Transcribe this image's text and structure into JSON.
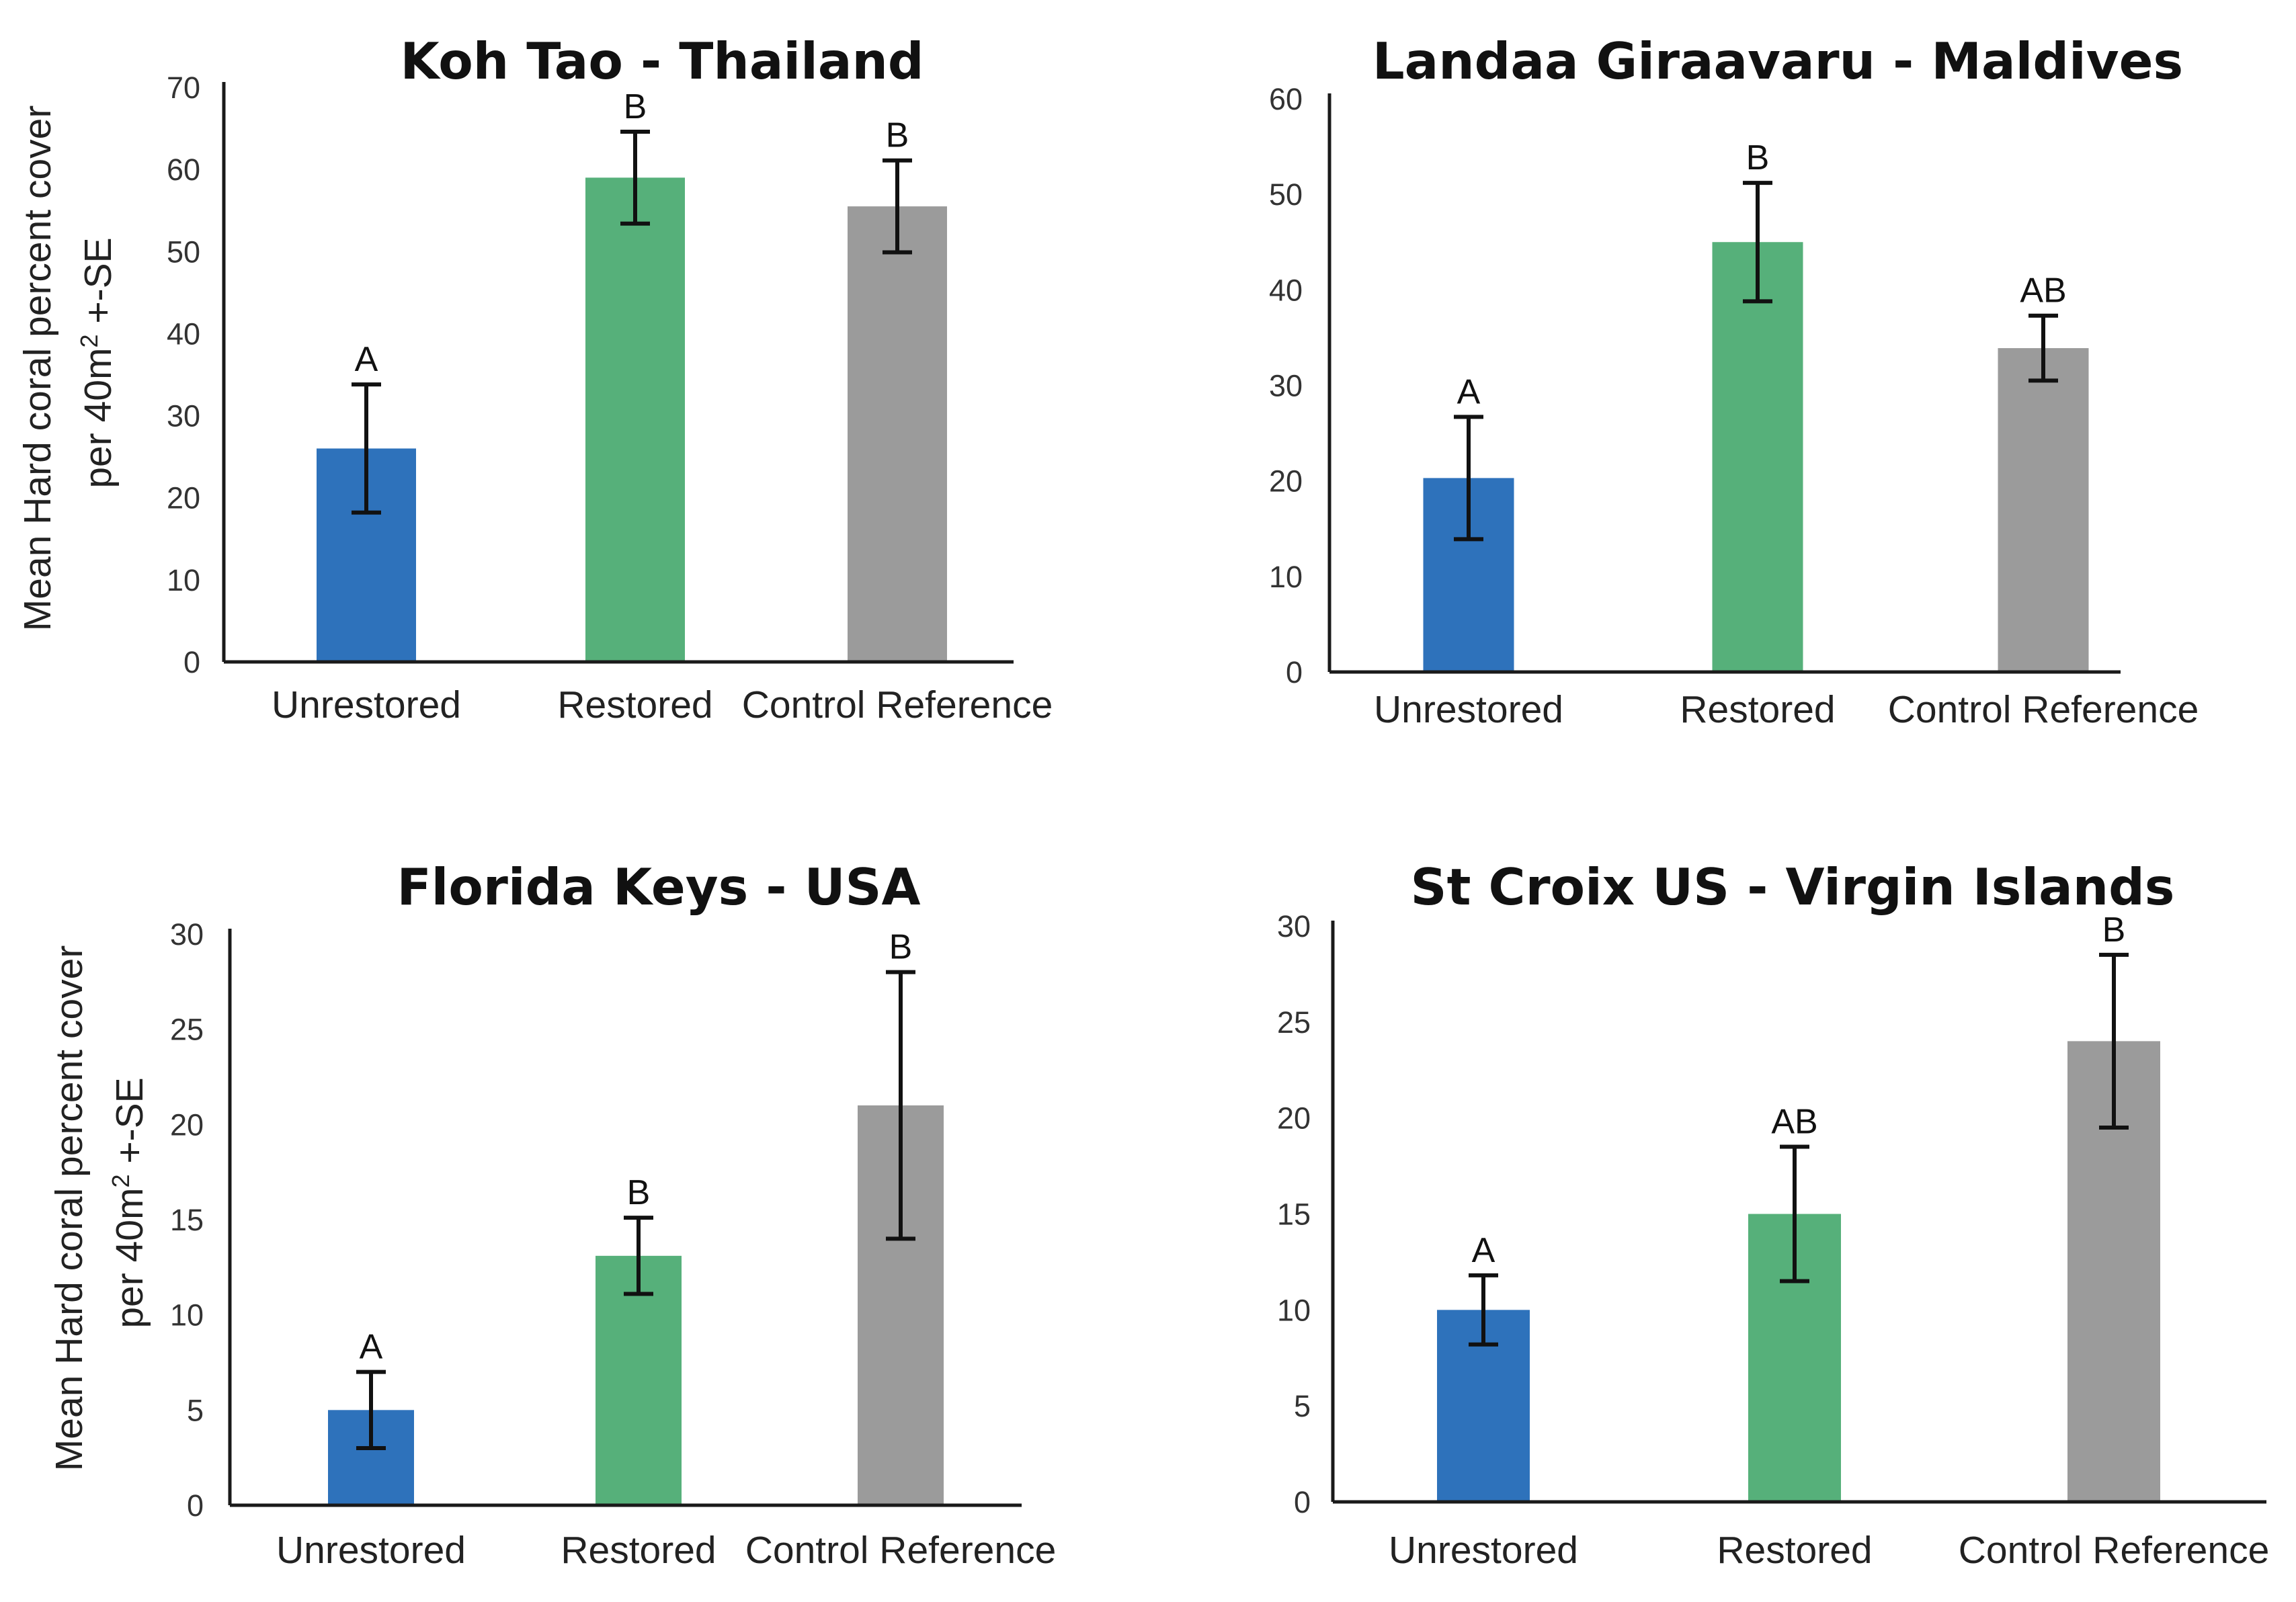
{
  "y_axis_title": {
    "line1": "Mean Hard coral percent cover",
    "line2_prefix": "per 40m",
    "line2_superscript": "2",
    "line2_suffix": " +-SE"
  },
  "colors": {
    "unrestored": "#2e72bb",
    "restored": "#56b07a",
    "control": "#9b9b9b",
    "axis": "#1a1a1a",
    "error_bar": "#111111"
  },
  "chart_data": [
    {
      "type": "bar",
      "title": "Koh Tao - Thailand",
      "categories": [
        "Unrestored",
        "Restored",
        "Control Reference"
      ],
      "values": [
        26,
        59,
        55.5
      ],
      "errors": [
        7.8,
        5.6,
        5.6
      ],
      "significance": [
        "A",
        "B",
        "B"
      ],
      "ylim": [
        0,
        70
      ],
      "yticks": [
        0,
        10,
        20,
        30,
        40,
        50,
        60,
        70
      ],
      "ylabel": "Mean Hard coral percent cover per 40m2 +-SE",
      "xlabel": ""
    },
    {
      "type": "bar",
      "title": "Landaa Giraavaru - Maldives",
      "categories": [
        "Unrestored",
        "Restored",
        "Control Reference"
      ],
      "values": [
        20.3,
        45,
        33.9
      ],
      "errors": [
        6.4,
        6.2,
        3.4
      ],
      "significance": [
        "A",
        "B",
        "AB"
      ],
      "ylim": [
        0,
        60
      ],
      "yticks": [
        0,
        10,
        20,
        30,
        40,
        50,
        60
      ],
      "ylabel": "",
      "xlabel": ""
    },
    {
      "type": "bar",
      "title": "Florida Keys - USA",
      "categories": [
        "Unrestored",
        "Restored",
        "Control Reference"
      ],
      "values": [
        5,
        13.1,
        21
      ],
      "errors": [
        2,
        2,
        7
      ],
      "significance": [
        "A",
        "B",
        "B"
      ],
      "ylim": [
        0,
        30
      ],
      "yticks": [
        0,
        5,
        10,
        15,
        20,
        25,
        30
      ],
      "ylabel": "Mean Hard coral percent cover per 40m2 +-SE",
      "xlabel": ""
    },
    {
      "type": "bar",
      "title": "St Croix US - Virgin Islands",
      "categories": [
        "Unrestored",
        "Restored",
        "Control Reference"
      ],
      "values": [
        10,
        15,
        24
      ],
      "errors": [
        1.8,
        3.5,
        4.5
      ],
      "significance": [
        "A",
        "AB",
        "B"
      ],
      "ylim": [
        0,
        30
      ],
      "yticks": [
        0,
        5,
        10,
        15,
        20,
        25,
        30
      ],
      "ylabel": "",
      "xlabel": ""
    }
  ]
}
